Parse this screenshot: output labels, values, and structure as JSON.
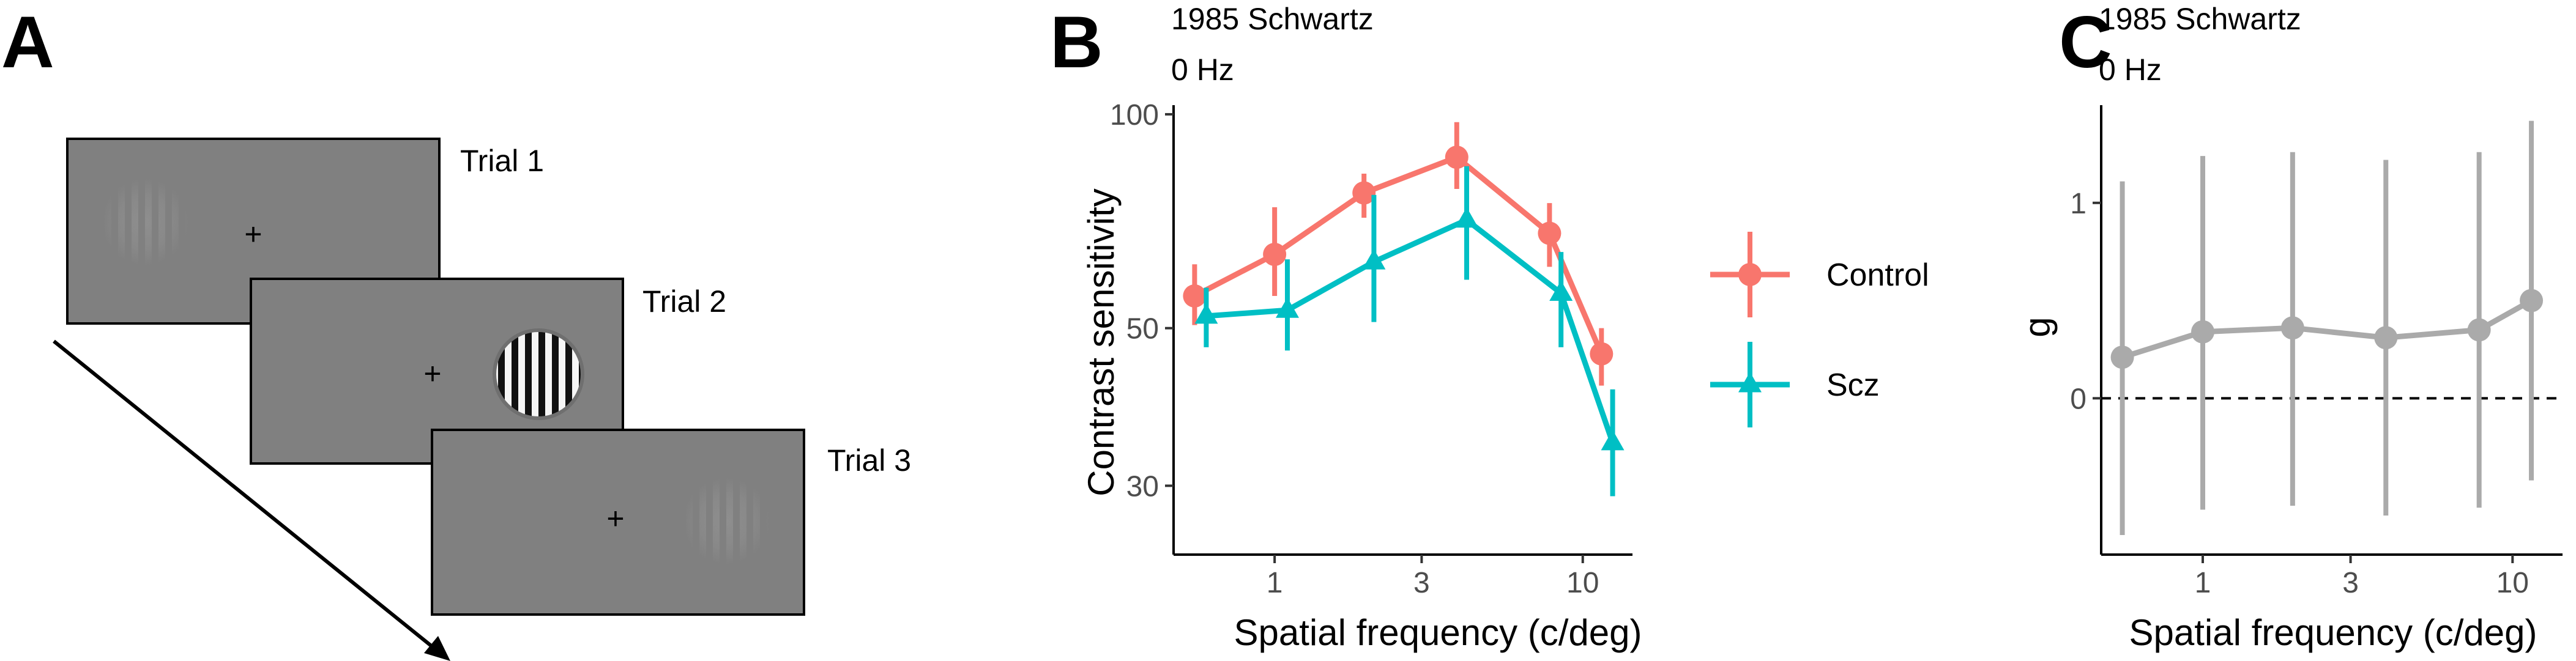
{
  "panel_labels": [
    "A",
    "B",
    "C"
  ],
  "panel_a": {
    "trials": [
      "Trial 1",
      "Trial 2",
      "Trial 3"
    ],
    "fixation": "+",
    "colors": {
      "screen": "#808080",
      "border": "#000000"
    }
  },
  "chart_data": [
    {
      "type": "line",
      "title": "1985 Schwartz",
      "subtitle": "0 Hz",
      "xlabel": "Spatial frequency (c/deg)",
      "ylabel": "Contrast sensitivity",
      "x_scale": "log",
      "y_scale": "log",
      "xlim": [
        0.47,
        14.5
      ],
      "ylim": [
        24,
        103
      ],
      "x_ticks": [
        1,
        3,
        10
      ],
      "x_tick_labels": [
        "1",
        "3",
        "10"
      ],
      "y_ticks": [
        30,
        50,
        100
      ],
      "y_tick_labels": [
        "30",
        "50",
        "100"
      ],
      "grid": false,
      "legend_position": "right",
      "series": [
        {
          "name": "Control",
          "color": "#F8766D",
          "marker": "circle",
          "x": [
            0.55,
            1.0,
            1.95,
            3.9,
            7.8,
            11.5
          ],
          "y": [
            55.5,
            63.5,
            77.5,
            87.0,
            68.0,
            46.0
          ],
          "y_low": [
            50.5,
            55.5,
            71.5,
            78.5,
            61.0,
            41.5
          ],
          "y_high": [
            61.5,
            74.0,
            82.5,
            97.5,
            75.0,
            50.0
          ]
        },
        {
          "name": "Scz",
          "color": "#00BFC4",
          "marker": "triangle",
          "x": [
            0.6,
            1.1,
            2.1,
            4.2,
            8.5,
            12.5
          ],
          "y": [
            52.0,
            53.0,
            62.0,
            71.0,
            56.0,
            34.5
          ],
          "y_low": [
            47.0,
            46.5,
            51.0,
            58.5,
            47.0,
            29.0
          ],
          "y_high": [
            57.0,
            62.5,
            77.0,
            84.5,
            64.0,
            41.0
          ]
        }
      ]
    },
    {
      "type": "line",
      "title": "1985 Schwartz",
      "subtitle": "0 Hz",
      "xlabel": "Spatial frequency (c/deg)",
      "ylabel": "g",
      "x_scale": "log",
      "y_scale": "linear",
      "xlim": [
        0.47,
        14.5
      ],
      "ylim": [
        -0.8,
        1.5
      ],
      "x_ticks": [
        1,
        3,
        10
      ],
      "x_tick_labels": [
        "1",
        "3",
        "10"
      ],
      "y_ticks": [
        0,
        1
      ],
      "y_tick_labels": [
        "0",
        "1"
      ],
      "reference_line": {
        "y": 0,
        "style": "dashed"
      },
      "grid": false,
      "series": [
        {
          "color": "#AAAAAA",
          "marker": "circle",
          "x": [
            0.55,
            1.0,
            1.95,
            3.9,
            7.8,
            11.5
          ],
          "y": [
            0.21,
            0.34,
            0.36,
            0.31,
            0.35,
            0.5
          ],
          "y_low": [
            -0.7,
            -0.57,
            -0.55,
            -0.6,
            -0.56,
            -0.42
          ],
          "y_high": [
            1.11,
            1.24,
            1.26,
            1.22,
            1.26,
            1.42
          ]
        }
      ]
    }
  ]
}
